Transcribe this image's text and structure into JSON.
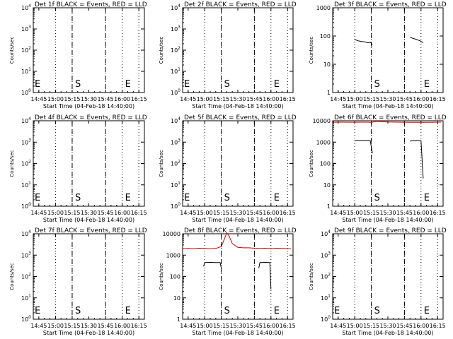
{
  "chart_data": [
    {
      "type": "line",
      "title": "Det 1f BLACK = Events, RED = LLD",
      "xlabel": "Start Time (04-Feb-18 14:40:00)",
      "ylabel": "Counts/sec",
      "x_ticks": [
        "14:45",
        "15:00",
        "15:15",
        "15:30",
        "15:45",
        "16:00",
        "16:15"
      ],
      "y_scale": "log",
      "ylim": [
        1,
        10000
      ],
      "y_ticks": [
        "10^0",
        "10^1",
        "10^2",
        "10^3",
        "10^4"
      ],
      "markers": [
        "S",
        "E"
      ],
      "series": []
    },
    {
      "type": "line",
      "title": "Det 2f BLACK = Events, RED = LLD",
      "xlabel": "Start Time (04-Feb-18 14:40:00)",
      "ylabel": "Counts/sec",
      "x_ticks": [
        "14:45",
        "15:00",
        "15:15",
        "15:30",
        "15:45",
        "16:00",
        "16:15"
      ],
      "y_scale": "log",
      "ylim": [
        1,
        10000
      ],
      "y_ticks": [
        "10^0",
        "10^1",
        "10^2",
        "10^3",
        "10^4"
      ],
      "markers": [
        "S",
        "E"
      ],
      "series": []
    },
    {
      "type": "line",
      "title": "Det 3f BLACK = Events, RED = LLD",
      "xlabel": "Start Time (04-Feb-18 14:40:00)",
      "ylabel": "Counts/sec",
      "x_ticks": [
        "14:45",
        "15:00",
        "15:15",
        "15:30",
        "15:45",
        "16:00",
        "16:15"
      ],
      "y_scale": "log",
      "ylim": [
        1,
        1000
      ],
      "y_ticks": [
        "1",
        "10",
        "100",
        "1000"
      ],
      "markers": [
        "S",
        "E"
      ],
      "series": [
        {
          "color": "#000000",
          "segments": [
            {
              "x": [
                "15:00",
                "15:03",
                "15:06",
                "15:09",
                "15:12",
                "15:14",
                "15:16"
              ],
              "y": [
                75,
                68,
                64,
                62,
                58,
                60,
                50
              ]
            },
            {
              "x": [
                "15:50",
                "15:53",
                "15:56",
                "15:59",
                "16:02"
              ],
              "y": [
                90,
                82,
                75,
                68,
                58
              ]
            }
          ]
        }
      ]
    },
    {
      "type": "line",
      "title": "Det 4f BLACK = Events, RED = LLD",
      "xlabel": "Start Time (04-Feb-18 14:40:00)",
      "ylabel": "Counts/sec",
      "x_ticks": [
        "14:45",
        "15:00",
        "15:15",
        "15:30",
        "15:45",
        "16:00",
        "16:15"
      ],
      "y_scale": "log",
      "ylim": [
        1,
        10000
      ],
      "y_ticks": [
        "10^0",
        "10^1",
        "10^2",
        "10^3",
        "10^4"
      ],
      "markers": [
        "S",
        "E"
      ],
      "series": []
    },
    {
      "type": "line",
      "title": "Det 5f BLACK = Events, RED = LLD",
      "xlabel": "Start Time (04-Feb-18 14:40:00)",
      "ylabel": "Counts/sec",
      "x_ticks": [
        "14:45",
        "15:00",
        "15:15",
        "15:30",
        "15:45",
        "16:00",
        "16:15"
      ],
      "y_scale": "log",
      "ylim": [
        1,
        10000
      ],
      "y_ticks": [
        "10^0",
        "10^1",
        "10^2",
        "10^3",
        "10^4"
      ],
      "markers": [
        "S",
        "E"
      ],
      "series": []
    },
    {
      "type": "line",
      "title": "Det 6f BLACK = Events, RED = LLD",
      "xlabel": "Start Time (04-Feb-18 14:40:00)",
      "ylabel": "Counts/sec",
      "x_ticks": [
        "14:45",
        "15:00",
        "15:15",
        "15:30",
        "15:45",
        "16:00",
        "16:15"
      ],
      "y_scale": "log",
      "ylim": [
        1,
        10000
      ],
      "y_ticks": [
        "1",
        "10",
        "100",
        "1000",
        "10000"
      ],
      "markers": [
        "S",
        "E"
      ],
      "series": [
        {
          "color": "#cc0000",
          "segments": [
            {
              "x": [
                "14:40",
                "14:50",
                "15:00",
                "15:10",
                "15:15",
                "15:20",
                "15:30",
                "15:45",
                "16:00",
                "16:10",
                "16:18"
              ],
              "y": [
                8500,
                8600,
                8500,
                8600,
                8400,
                9500,
                8800,
                8500,
                8400,
                8500,
                8600
              ]
            }
          ]
        },
        {
          "color": "#000000",
          "segments": [
            {
              "x": [
                "15:00",
                "15:05",
                "15:10",
                "15:14",
                "15:16"
              ],
              "y": [
                1200,
                1210,
                1200,
                1190,
                300
              ]
            },
            {
              "x": [
                "15:50",
                "15:52",
                "15:56",
                "16:00",
                "16:02"
              ],
              "y": [
                1100,
                1180,
                1200,
                1150,
                20
              ]
            }
          ]
        }
      ]
    },
    {
      "type": "line",
      "title": "Det 7f BLACK = Events, RED = LLD",
      "xlabel": "Start Time (04-Feb-18 14:40:00)",
      "ylabel": "Counts/sec",
      "x_ticks": [
        "14:45",
        "15:00",
        "15:15",
        "15:30",
        "15:45",
        "16:00",
        "16:15"
      ],
      "y_scale": "log",
      "ylim": [
        1,
        10000
      ],
      "y_ticks": [
        "10^0",
        "10^1",
        "10^2",
        "10^3",
        "10^4"
      ],
      "markers": [
        "S",
        "E"
      ],
      "series": []
    },
    {
      "type": "line",
      "title": "Det 8f BLACK = Events, RED = LLD",
      "xlabel": "Start Time (04-Feb-18 14:40:00)",
      "ylabel": "Counts/sec",
      "x_ticks": [
        "14:45",
        "15:00",
        "15:15",
        "15:30",
        "15:45",
        "16:00",
        "16:15"
      ],
      "y_scale": "log",
      "ylim": [
        1,
        10000
      ],
      "y_ticks": [
        "1",
        "10",
        "100",
        "1000",
        "10000"
      ],
      "markers": [
        "S",
        "E"
      ],
      "series": [
        {
          "color": "#cc0000",
          "segments": [
            {
              "x": [
                "14:40",
                "14:45",
                "14:50",
                "14:55",
                "15:00",
                "15:05",
                "15:10",
                "15:15",
                "15:18",
                "15:20",
                "15:22",
                "15:25",
                "15:30",
                "15:35",
                "15:40",
                "15:45",
                "15:50",
                "15:55",
                "16:00",
                "16:05",
                "16:10",
                "16:18"
              ],
              "y": [
                2000,
                2050,
                2000,
                2100,
                2050,
                2000,
                2050,
                2500,
                6000,
                11000,
                8000,
                3500,
                2300,
                2200,
                2200,
                2100,
                2050,
                2100,
                2000,
                2100,
                2050,
                2000
              ]
            }
          ]
        },
        {
          "color": "#000000",
          "segments": [
            {
              "x": [
                "14:59",
                "15:00",
                "15:05",
                "15:10",
                "15:14",
                "15:15"
              ],
              "y": [
                300,
                450,
                460,
                450,
                450,
                250
              ]
            },
            {
              "x": [
                "15:49",
                "15:50",
                "15:55",
                "15:59",
                "16:00"
              ],
              "y": [
                250,
                450,
                460,
                450,
                25
              ]
            }
          ]
        }
      ]
    },
    {
      "type": "line",
      "title": "Det 9f BLACK = Events, RED = LLD",
      "xlabel": "Start Time (04-Feb-18 14:40:00)",
      "ylabel": "Counts/sec",
      "x_ticks": [
        "14:45",
        "15:00",
        "15:15",
        "15:30",
        "15:45",
        "16:00",
        "16:15"
      ],
      "y_scale": "log",
      "ylim": [
        1,
        10000
      ],
      "y_ticks": [
        "10^0",
        "10^1",
        "10^2",
        "10^3",
        "10^4"
      ],
      "markers": [
        "S",
        "E"
      ],
      "series": []
    }
  ]
}
